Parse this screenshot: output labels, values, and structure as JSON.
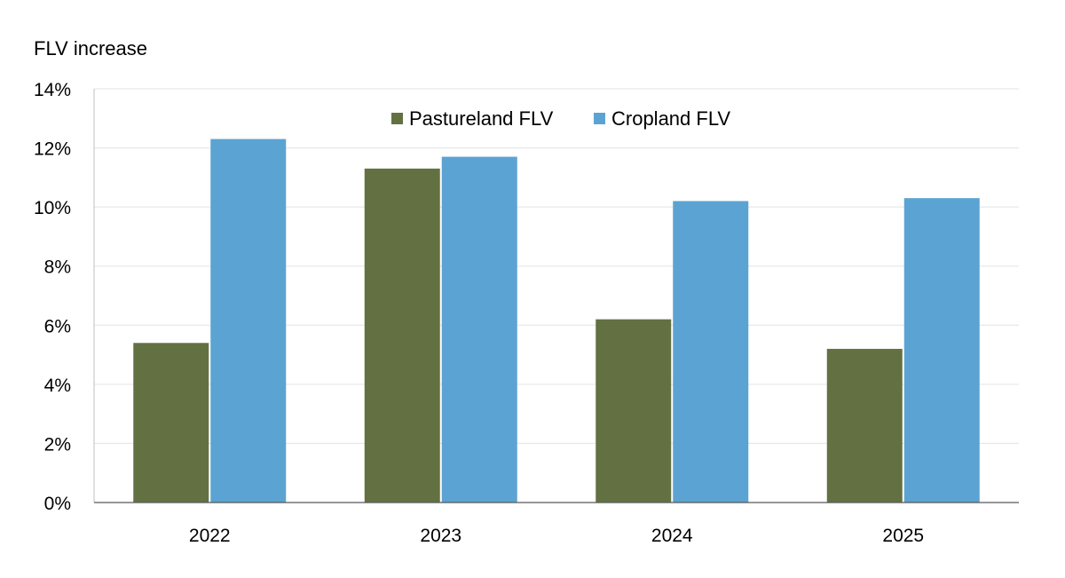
{
  "chart_data": {
    "type": "bar",
    "ylabel": "FLV increase",
    "categories": [
      "2022",
      "2023",
      "2024",
      "2025"
    ],
    "series": [
      {
        "name": "Pastureland FLV",
        "color": "#637142",
        "values": [
          5.4,
          11.3,
          6.2,
          5.2
        ]
      },
      {
        "name": "Cropland FLV",
        "color": "#5ba3d2",
        "values": [
          12.3,
          11.7,
          10.2,
          10.3
        ]
      }
    ],
    "ylim": [
      0,
      14
    ],
    "yticks": [
      0,
      2,
      4,
      6,
      8,
      10,
      12,
      14
    ],
    "ytick_labels": [
      "0%",
      "2%",
      "4%",
      "6%",
      "8%",
      "10%",
      "12%",
      "14%"
    ],
    "value_unit": "%",
    "grid": true,
    "legend_position": "top-center"
  }
}
